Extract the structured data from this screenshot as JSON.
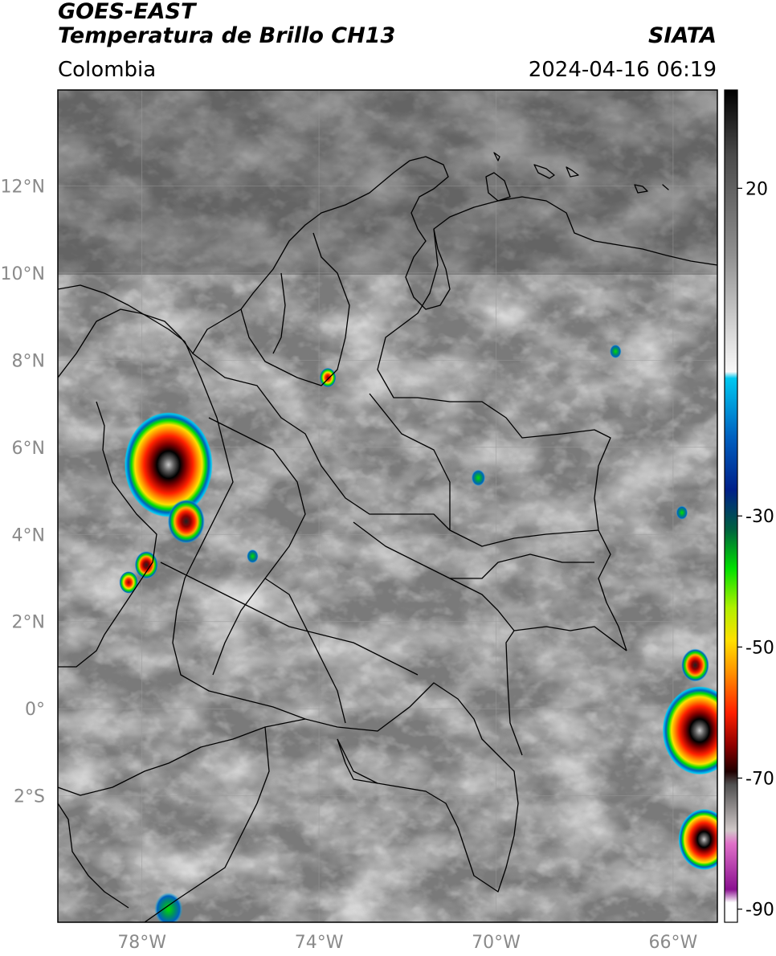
{
  "header": {
    "title_line1": "GOES-EAST",
    "title_line2": "Temperatura de Brillo CH13",
    "region": "Colombia",
    "organization": "SIATA",
    "timestamp": "2024-04-16 06:19"
  },
  "map": {
    "lon_range": [
      -79.9,
      -65.0
    ],
    "lat_range": [
      -4.9,
      14.2
    ],
    "lat_ticks": [
      {
        "value": 12,
        "label": "12°N"
      },
      {
        "value": 10,
        "label": "10°N"
      },
      {
        "value": 8,
        "label": "8°N"
      },
      {
        "value": 6,
        "label": "6°N"
      },
      {
        "value": 4,
        "label": "4°N"
      },
      {
        "value": 2,
        "label": "2°N"
      },
      {
        "value": 0,
        "label": "0°"
      },
      {
        "value": -2,
        "label": "2°S"
      }
    ],
    "lon_ticks": [
      {
        "value": -78,
        "label": "78°W"
      },
      {
        "value": -74,
        "label": "74°W"
      },
      {
        "value": -70,
        "label": "70°W"
      },
      {
        "value": -66,
        "label": "66°W"
      }
    ],
    "storms": [
      {
        "lon": -77.4,
        "lat": 5.6,
        "intensity": "very-cold",
        "size": 1.9
      },
      {
        "lon": -77.0,
        "lat": 4.3,
        "intensity": "cold",
        "size": 0.8
      },
      {
        "lon": -77.9,
        "lat": 3.3,
        "intensity": "cold",
        "size": 0.5
      },
      {
        "lon": -78.3,
        "lat": 2.9,
        "intensity": "moderate",
        "size": 0.4
      },
      {
        "lon": -73.8,
        "lat": 7.6,
        "intensity": "moderate",
        "size": 0.35
      },
      {
        "lon": -65.4,
        "lat": -0.5,
        "intensity": "very-cold",
        "size": 1.6
      },
      {
        "lon": -65.3,
        "lat": -3.0,
        "intensity": "very-cold",
        "size": 1.1
      },
      {
        "lon": -65.5,
        "lat": 1.0,
        "intensity": "cold",
        "size": 0.6
      },
      {
        "lon": -77.4,
        "lat": -4.6,
        "intensity": "weak",
        "size": 0.6
      },
      {
        "lon": -70.4,
        "lat": 5.3,
        "intensity": "weak",
        "size": 0.3
      },
      {
        "lon": -65.8,
        "lat": 4.5,
        "intensity": "weak",
        "size": 0.25
      },
      {
        "lon": -67.3,
        "lat": 8.2,
        "intensity": "weak",
        "size": 0.25
      },
      {
        "lon": -75.5,
        "lat": 3.5,
        "intensity": "weak",
        "size": 0.25
      }
    ]
  },
  "colorbar": {
    "range": [
      -92,
      35
    ],
    "ticks": [
      {
        "value": 20,
        "label": "20"
      },
      {
        "value": -30,
        "label": "-30"
      },
      {
        "value": -50,
        "label": "-50"
      },
      {
        "value": -70,
        "label": "-70"
      },
      {
        "value": -90,
        "label": "-90"
      }
    ],
    "stops": [
      {
        "value": 35,
        "color": "#000000"
      },
      {
        "value": 25,
        "color": "#4a4a4a"
      },
      {
        "value": 10,
        "color": "#8f8f8f"
      },
      {
        "value": -2,
        "color": "#d8d8d8"
      },
      {
        "value": -8,
        "color": "#f8f8f8"
      },
      {
        "value": -9,
        "color": "#00c8f0"
      },
      {
        "value": -18,
        "color": "#0060c0"
      },
      {
        "value": -26,
        "color": "#00208a"
      },
      {
        "value": -32,
        "color": "#006040"
      },
      {
        "value": -38,
        "color": "#00e000"
      },
      {
        "value": -44,
        "color": "#b0f000"
      },
      {
        "value": -49,
        "color": "#ffe000"
      },
      {
        "value": -54,
        "color": "#ff9000"
      },
      {
        "value": -60,
        "color": "#ff2000"
      },
      {
        "value": -65,
        "color": "#900000"
      },
      {
        "value": -69,
        "color": "#200000"
      },
      {
        "value": -71,
        "color": "#505050"
      },
      {
        "value": -78,
        "color": "#d0c8c8"
      },
      {
        "value": -80,
        "color": "#e070c8"
      },
      {
        "value": -87,
        "color": "#8a1090"
      },
      {
        "value": -89,
        "color": "#ffffff"
      },
      {
        "value": -92,
        "color": "#ffffff"
      }
    ]
  },
  "colors": {
    "background": "#7a7a7a",
    "grid": "#9a9a9a",
    "borders": "#000000",
    "tick_text": "#8a8a8a"
  }
}
